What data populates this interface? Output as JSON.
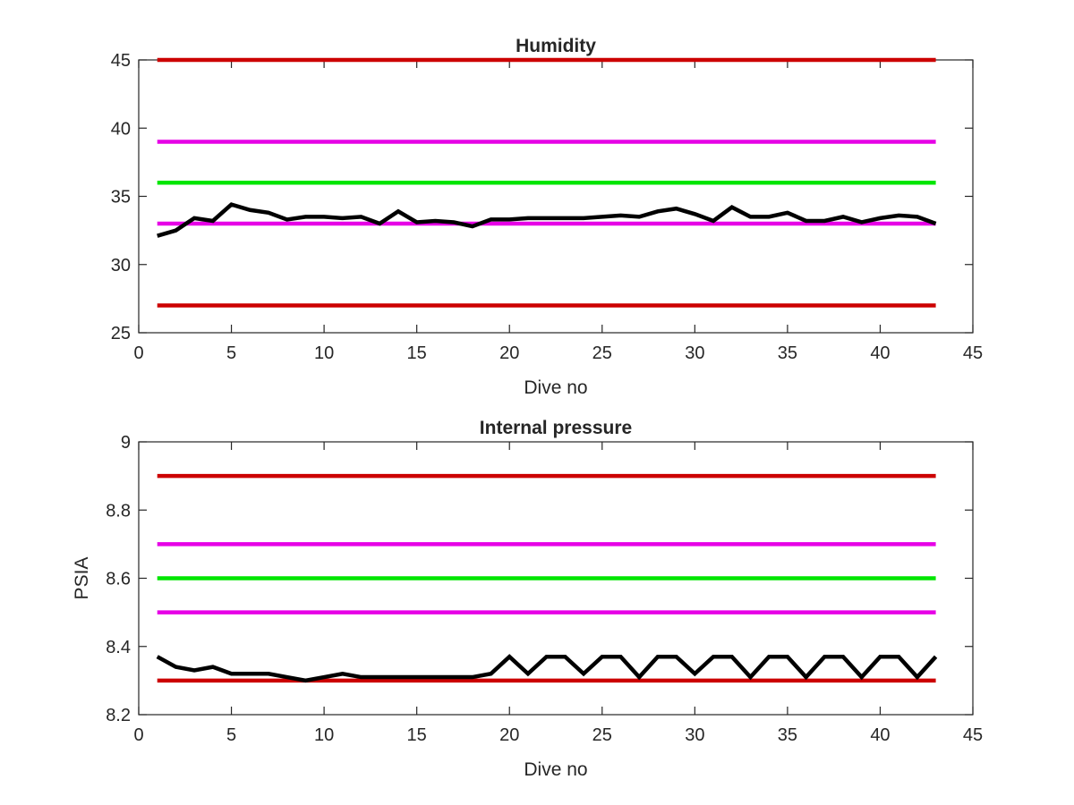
{
  "chart_data": [
    {
      "type": "line",
      "title": "Humidity",
      "xlabel": "Dive no",
      "ylabel": "",
      "xlim": [
        0,
        45
      ],
      "ylim": [
        25,
        45
      ],
      "xticks": [
        0,
        5,
        10,
        15,
        20,
        25,
        30,
        35,
        40,
        45
      ],
      "yticks": [
        25,
        30,
        35,
        40,
        45
      ],
      "xtick_labels": [
        "0",
        "5",
        "10",
        "15",
        "20",
        "25",
        "30",
        "35",
        "40",
        "45"
      ],
      "ytick_labels": [
        "25",
        "30",
        "35",
        "40",
        "45"
      ],
      "grid": false,
      "thresholds": [
        {
          "y": 45,
          "x": [
            1,
            43
          ],
          "color": "#cc0000"
        },
        {
          "y": 39,
          "x": [
            1,
            43
          ],
          "color": "#e600e6"
        },
        {
          "y": 36,
          "x": [
            1,
            43
          ],
          "color": "#00e600"
        },
        {
          "y": 33,
          "x": [
            1,
            43
          ],
          "color": "#e600e6"
        },
        {
          "y": 27,
          "x": [
            1,
            43
          ],
          "color": "#cc0000"
        }
      ],
      "series": [
        {
          "color": "#000000",
          "x": [
            1,
            2,
            3,
            4,
            5,
            6,
            7,
            8,
            9,
            10,
            11,
            12,
            13,
            14,
            15,
            16,
            17,
            18,
            19,
            20,
            21,
            22,
            23,
            24,
            25,
            26,
            27,
            28,
            29,
            30,
            31,
            32,
            33,
            34,
            35,
            36,
            37,
            38,
            39,
            40,
            41,
            42,
            43
          ],
          "values": [
            32.1,
            32.5,
            33.4,
            33.2,
            34.4,
            34.0,
            33.8,
            33.3,
            33.5,
            33.5,
            33.4,
            33.5,
            33.0,
            33.9,
            33.1,
            33.2,
            33.1,
            32.8,
            33.3,
            33.3,
            33.4,
            33.4,
            33.4,
            33.4,
            33.5,
            33.6,
            33.5,
            33.9,
            34.1,
            33.7,
            33.2,
            34.2,
            33.5,
            33.5,
            33.8,
            33.2,
            33.2,
            33.5,
            33.1,
            33.4,
            33.6,
            33.5,
            33.0
          ]
        }
      ]
    },
    {
      "type": "line",
      "title": "Internal pressure",
      "xlabel": "Dive no",
      "ylabel": "PSIA",
      "xlim": [
        0,
        45
      ],
      "ylim": [
        8.2,
        9
      ],
      "xticks": [
        0,
        5,
        10,
        15,
        20,
        25,
        30,
        35,
        40,
        45
      ],
      "yticks": [
        8.2,
        8.4,
        8.6,
        8.8,
        9
      ],
      "xtick_labels": [
        "0",
        "5",
        "10",
        "15",
        "20",
        "25",
        "30",
        "35",
        "40",
        "45"
      ],
      "ytick_labels": [
        "8.2",
        "8.4",
        "8.6",
        "8.8",
        "9"
      ],
      "grid": false,
      "thresholds": [
        {
          "y": 8.9,
          "x": [
            1,
            43
          ],
          "color": "#cc0000"
        },
        {
          "y": 8.7,
          "x": [
            1,
            43
          ],
          "color": "#e600e6"
        },
        {
          "y": 8.6,
          "x": [
            1,
            43
          ],
          "color": "#00e600"
        },
        {
          "y": 8.5,
          "x": [
            1,
            43
          ],
          "color": "#e600e6"
        },
        {
          "y": 8.3,
          "x": [
            1,
            43
          ],
          "color": "#cc0000"
        }
      ],
      "series": [
        {
          "color": "#000000",
          "x": [
            1,
            2,
            3,
            4,
            5,
            6,
            7,
            8,
            9,
            10,
            11,
            12,
            13,
            14,
            15,
            16,
            17,
            18,
            19,
            20,
            21,
            22,
            23,
            24,
            25,
            26,
            27,
            28,
            29,
            30,
            31,
            32,
            33,
            34,
            35,
            36,
            37,
            38,
            39,
            40,
            41,
            42,
            43
          ],
          "values": [
            8.37,
            8.34,
            8.33,
            8.34,
            8.32,
            8.32,
            8.32,
            8.31,
            8.3,
            8.31,
            8.32,
            8.31,
            8.31,
            8.31,
            8.31,
            8.31,
            8.31,
            8.31,
            8.32,
            8.37,
            8.32,
            8.37,
            8.37,
            8.32,
            8.37,
            8.37,
            8.31,
            8.37,
            8.37,
            8.32,
            8.37,
            8.37,
            8.31,
            8.37,
            8.37,
            8.31,
            8.37,
            8.37,
            8.31,
            8.37,
            8.37,
            8.31,
            8.37
          ]
        }
      ]
    }
  ]
}
